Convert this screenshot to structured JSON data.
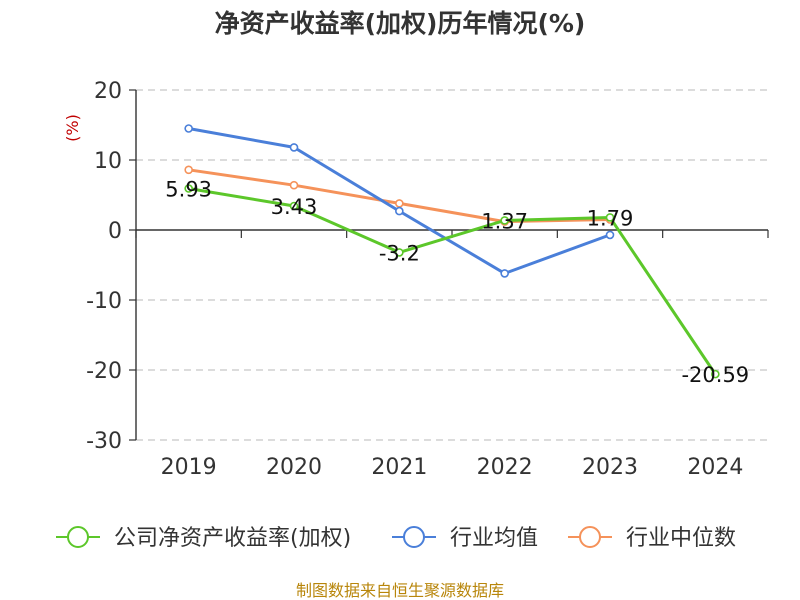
{
  "chart_data": {
    "type": "line",
    "title": "净资产收益率(加权)历年情况(%)",
    "ylabel": "(%)",
    "categories": [
      "2019",
      "2020",
      "2021",
      "2022",
      "2023",
      "2024"
    ],
    "ylim": [
      -30,
      20
    ],
    "yticks": [
      20,
      10,
      0,
      -10,
      -20,
      -30
    ],
    "grid": true,
    "legend_position": "bottom",
    "series": [
      {
        "name": "公司净资产收益率(加权)",
        "color": "#5cc72a",
        "values": [
          5.93,
          3.43,
          -3.2,
          1.37,
          1.79,
          -20.59
        ],
        "labels": [
          "5.93",
          "3.43",
          "-3.2",
          "1.37",
          "1.79",
          "-20.59"
        ]
      },
      {
        "name": "行业均值",
        "color": "#4a7fd9",
        "values": [
          14.5,
          11.8,
          2.7,
          -6.2,
          -0.7,
          null
        ]
      },
      {
        "name": "行业中位数",
        "color": "#f5925a",
        "values": [
          8.6,
          6.4,
          3.8,
          1.2,
          1.5,
          null
        ]
      }
    ],
    "source": "制图数据来自恒生聚源数据库"
  }
}
